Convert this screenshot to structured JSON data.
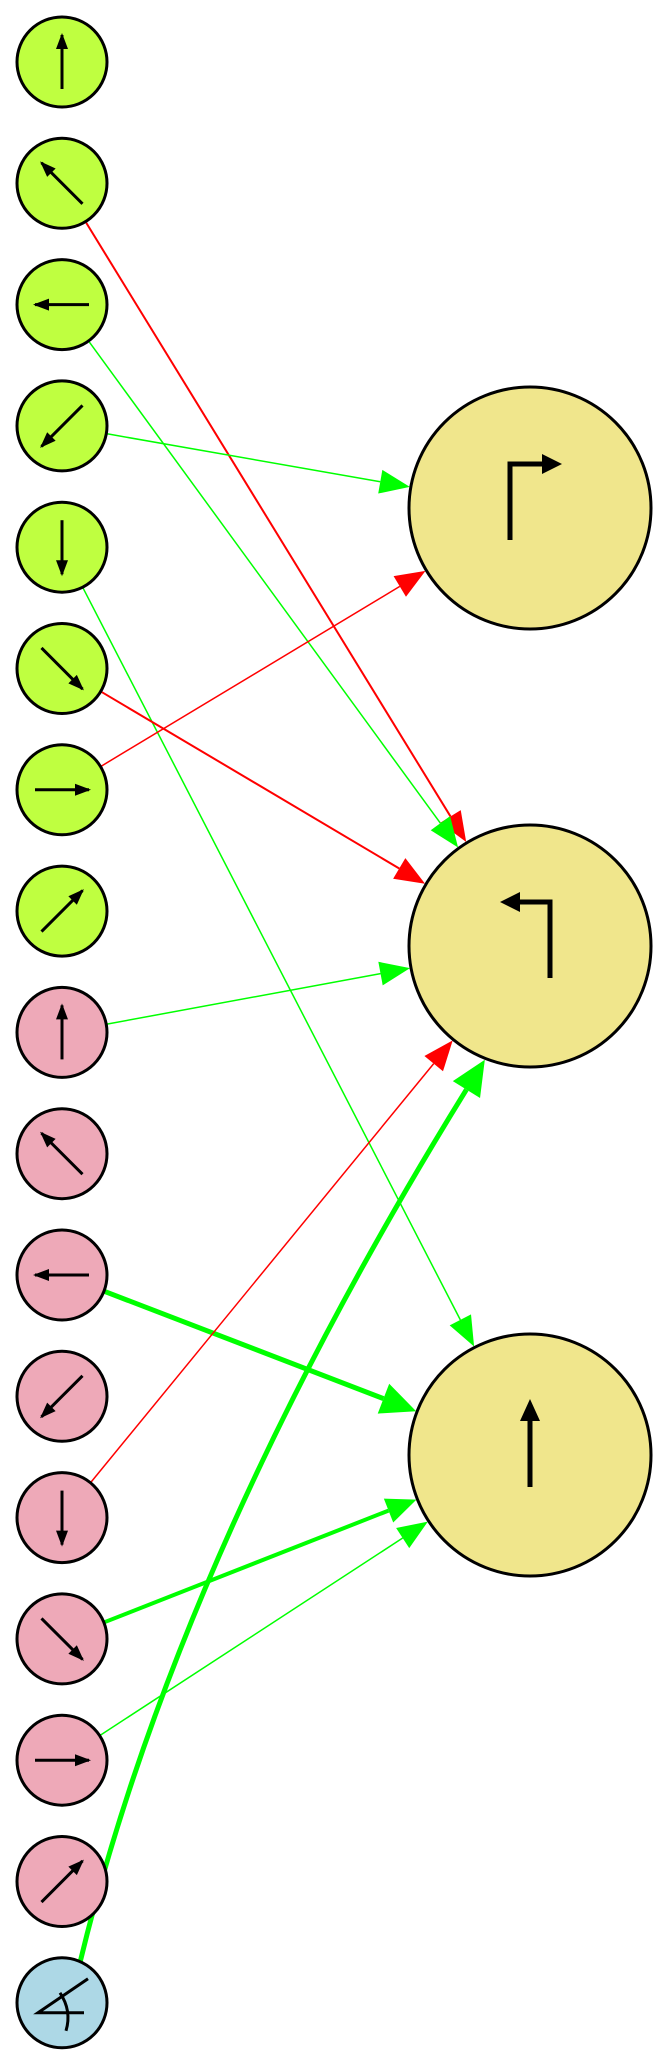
{
  "diagram": {
    "title": "",
    "colors": {
      "input_group_a": "#bfff40",
      "input_group_b": "#eea9b8",
      "input_bias": "#add8e6",
      "output": "#f0e68c",
      "excitatory": "#00ff00",
      "inhibitory": "#ff0000",
      "stroke": "#000000"
    },
    "input_nodes": [
      {
        "id": "a-up",
        "group": "a",
        "icon": "arrow-up-icon"
      },
      {
        "id": "a-up-left",
        "group": "a",
        "icon": "arrow-up-left-icon"
      },
      {
        "id": "a-left",
        "group": "a",
        "icon": "arrow-left-icon"
      },
      {
        "id": "a-down-left",
        "group": "a",
        "icon": "arrow-down-left-icon"
      },
      {
        "id": "a-down",
        "group": "a",
        "icon": "arrow-down-icon"
      },
      {
        "id": "a-down-right",
        "group": "a",
        "icon": "arrow-down-right-icon"
      },
      {
        "id": "a-right",
        "group": "a",
        "icon": "arrow-right-icon"
      },
      {
        "id": "a-up-right",
        "group": "a",
        "icon": "arrow-up-right-icon"
      },
      {
        "id": "b-up",
        "group": "b",
        "icon": "arrow-up-icon"
      },
      {
        "id": "b-up-left",
        "group": "b",
        "icon": "arrow-up-left-icon"
      },
      {
        "id": "b-left",
        "group": "b",
        "icon": "arrow-left-icon"
      },
      {
        "id": "b-down-left",
        "group": "b",
        "icon": "arrow-down-left-icon"
      },
      {
        "id": "b-down",
        "group": "b",
        "icon": "arrow-down-icon"
      },
      {
        "id": "b-down-right",
        "group": "b",
        "icon": "arrow-down-right-icon"
      },
      {
        "id": "b-right",
        "group": "b",
        "icon": "arrow-right-icon"
      },
      {
        "id": "b-up-right",
        "group": "b",
        "icon": "arrow-up-right-icon"
      },
      {
        "id": "bias",
        "group": "bias",
        "icon": "bias-symbol-icon"
      }
    ],
    "output_nodes": [
      {
        "id": "turn-right",
        "icon": "turn-right-icon"
      },
      {
        "id": "turn-left",
        "icon": "turn-left-icon"
      },
      {
        "id": "straight",
        "icon": "straight-icon"
      }
    ],
    "connections": [
      {
        "from": "a-up-left",
        "to": "turn-left",
        "sign": "inhibitory",
        "weight": 2
      },
      {
        "from": "a-left",
        "to": "turn-left",
        "sign": "excitatory",
        "weight": 1.5
      },
      {
        "from": "a-down-left",
        "to": "turn-right",
        "sign": "excitatory",
        "weight": 1.5
      },
      {
        "from": "a-down",
        "to": "straight",
        "sign": "excitatory",
        "weight": 1.5
      },
      {
        "from": "a-down-right",
        "to": "turn-left",
        "sign": "inhibitory",
        "weight": 2
      },
      {
        "from": "a-right",
        "to": "turn-right",
        "sign": "inhibitory",
        "weight": 1.5
      },
      {
        "from": "b-up",
        "to": "turn-left",
        "sign": "excitatory",
        "weight": 1.5
      },
      {
        "from": "b-left",
        "to": "straight",
        "sign": "excitatory",
        "weight": 5
      },
      {
        "from": "b-down",
        "to": "turn-left",
        "sign": "inhibitory",
        "weight": 1.5
      },
      {
        "from": "b-down-right",
        "to": "straight",
        "sign": "excitatory",
        "weight": 4
      },
      {
        "from": "b-right",
        "to": "straight",
        "sign": "excitatory",
        "weight": 1.5
      },
      {
        "from": "bias",
        "to": "turn-left",
        "sign": "excitatory",
        "weight": 5
      }
    ]
  }
}
